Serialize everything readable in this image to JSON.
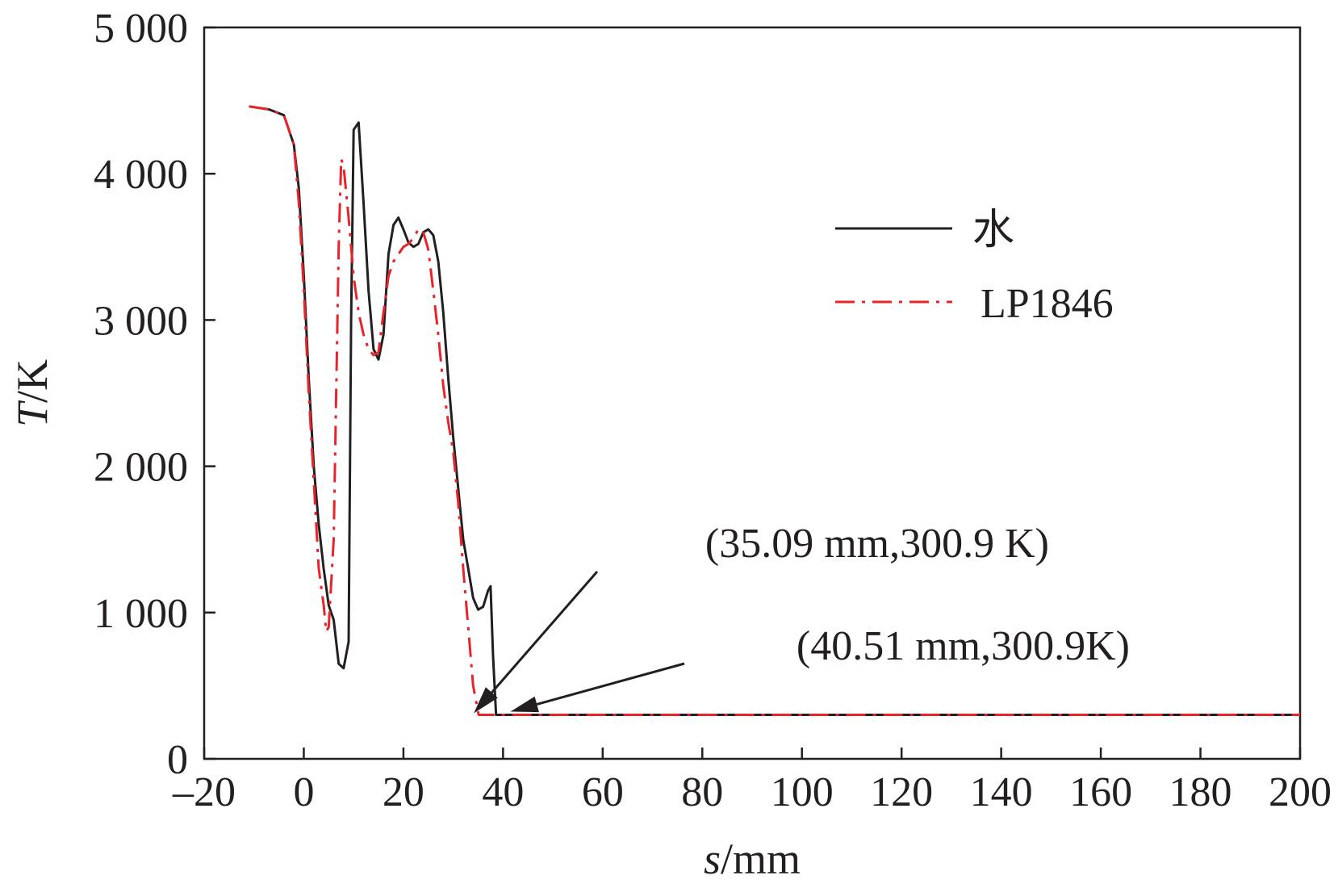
{
  "chart_data": {
    "type": "line",
    "xlabel_italic": "s",
    "xlabel_unit": "/mm",
    "ylabel_italic": "T",
    "ylabel_unit": "/K",
    "xlim": [
      -20,
      200
    ],
    "ylim": [
      0,
      5000
    ],
    "x_ticks": [
      -20,
      0,
      20,
      40,
      60,
      80,
      100,
      120,
      140,
      160,
      180,
      200
    ],
    "x_tick_labels": [
      "–20",
      "0",
      "20",
      "40",
      "60",
      "80",
      "100",
      "120",
      "140",
      "160",
      "180",
      "200"
    ],
    "y_ticks": [
      0,
      1000,
      2000,
      3000,
      4000,
      5000
    ],
    "y_tick_labels": [
      "0",
      "1 000",
      "2 000",
      "3 000",
      "4 000",
      "5 000"
    ],
    "legend_position": "upper-right",
    "grid": false,
    "series": [
      {
        "name": "水",
        "color": "#231f20",
        "style": "solid",
        "points": [
          [
            -11,
            4460
          ],
          [
            -7,
            4440
          ],
          [
            -4,
            4400
          ],
          [
            -2,
            4200
          ],
          [
            -1,
            3900
          ],
          [
            0,
            3300
          ],
          [
            1,
            2600
          ],
          [
            2,
            2000
          ],
          [
            3,
            1600
          ],
          [
            4,
            1300
          ],
          [
            5,
            1050
          ],
          [
            6,
            950
          ],
          [
            7,
            650
          ],
          [
            8,
            620
          ],
          [
            9,
            800
          ],
          [
            9.5,
            3000
          ],
          [
            10,
            4300
          ],
          [
            11,
            4350
          ],
          [
            12,
            3800
          ],
          [
            13,
            3200
          ],
          [
            14,
            2800
          ],
          [
            15,
            2730
          ],
          [
            16,
            2900
          ],
          [
            17,
            3450
          ],
          [
            18,
            3650
          ],
          [
            19,
            3700
          ],
          [
            20,
            3620
          ],
          [
            21,
            3530
          ],
          [
            22,
            3500
          ],
          [
            23,
            3520
          ],
          [
            24,
            3600
          ],
          [
            25,
            3620
          ],
          [
            26,
            3580
          ],
          [
            27,
            3400
          ],
          [
            28,
            3050
          ],
          [
            29,
            2600
          ],
          [
            30,
            2200
          ],
          [
            31,
            1850
          ],
          [
            32,
            1500
          ],
          [
            33,
            1300
          ],
          [
            34,
            1100
          ],
          [
            35,
            1020
          ],
          [
            36,
            1040
          ],
          [
            37,
            1150
          ],
          [
            37.5,
            1180
          ],
          [
            38,
            700
          ],
          [
            38.6,
            300.9
          ],
          [
            40.51,
            300.9
          ],
          [
            200,
            300.9
          ]
        ]
      },
      {
        "name": "LP1846",
        "color": "#e8242b",
        "style": "dash-dot",
        "points": [
          [
            -11,
            4460
          ],
          [
            -7,
            4440
          ],
          [
            -4,
            4400
          ],
          [
            -2,
            4200
          ],
          [
            -1,
            3800
          ],
          [
            0,
            3200
          ],
          [
            1,
            2500
          ],
          [
            2,
            1900
          ],
          [
            3,
            1300
          ],
          [
            4,
            1050
          ],
          [
            4.5,
            870
          ],
          [
            5,
            900
          ],
          [
            6,
            1500
          ],
          [
            7,
            3500
          ],
          [
            7.5,
            4100
          ],
          [
            8,
            4050
          ],
          [
            9,
            3700
          ],
          [
            10,
            3300
          ],
          [
            11,
            3050
          ],
          [
            12,
            2900
          ],
          [
            13,
            2800
          ],
          [
            14,
            2760
          ],
          [
            15,
            2780
          ],
          [
            16,
            3050
          ],
          [
            17,
            3300
          ],
          [
            18,
            3400
          ],
          [
            19,
            3450
          ],
          [
            20,
            3500
          ],
          [
            21,
            3520
          ],
          [
            22,
            3560
          ],
          [
            23,
            3620
          ],
          [
            24,
            3600
          ],
          [
            25,
            3480
          ],
          [
            26,
            3200
          ],
          [
            27,
            2900
          ],
          [
            28,
            2550
          ],
          [
            29,
            2300
          ],
          [
            30,
            2100
          ],
          [
            31,
            1750
          ],
          [
            32,
            1300
          ],
          [
            33,
            900
          ],
          [
            34,
            500
          ],
          [
            35.09,
            300.9
          ],
          [
            40,
            300.9
          ],
          [
            200,
            300.9
          ]
        ]
      }
    ],
    "annotations": [
      {
        "text": "(35.09 mm,300.9 K)",
        "x": 35.09,
        "y": 300.9
      },
      {
        "text": "(40.51 mm,300.9K)",
        "x": 40.51,
        "y": 300.9
      }
    ]
  }
}
